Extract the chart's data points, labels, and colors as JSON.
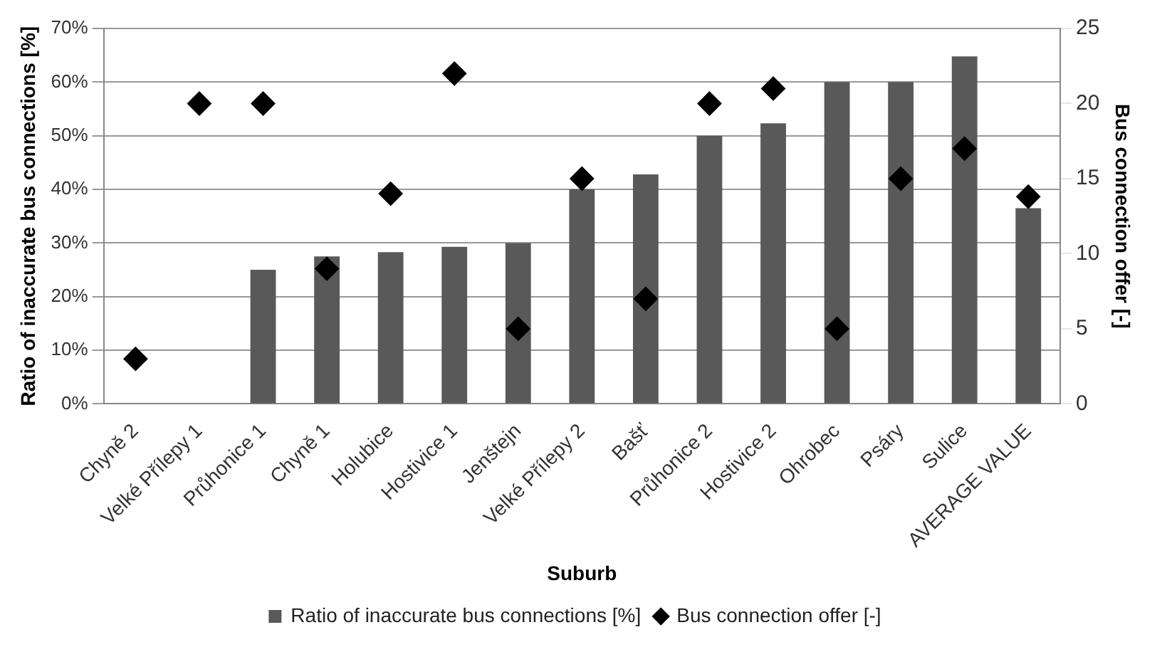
{
  "chart_data": {
    "type": "bar",
    "xlabel": "Suburb",
    "ylabel": "Ratio of inaccurate bus connections [%]",
    "y2label": "Bus connection offer [-]",
    "categories": [
      "Chyně 2",
      "Velké Přílepy 1",
      "Průhonice 1",
      "Chyně 1",
      "Holubice",
      "Hostivice 1",
      "Jenštejn",
      "Velké Přílepy 2",
      "Bašť",
      "Průhonice 2",
      "Hostivice 2",
      "Ohrobec",
      "Psáry",
      "Sulice",
      "AVERAGE VALUE"
    ],
    "series": [
      {
        "name": "Ratio of inaccurate bus connections [%]",
        "color": "#595959",
        "values": [
          0,
          0,
          25,
          27.5,
          28.3,
          29.3,
          30,
          40,
          42.8,
          50,
          52.3,
          60,
          60,
          64.8,
          36.5
        ]
      },
      {
        "name": "Bus connection offer [-]",
        "type": "scatter",
        "axis": "y2",
        "marker": "diamond",
        "color": "#000000",
        "values": [
          3,
          20,
          20,
          9,
          14,
          22,
          5,
          15,
          7,
          20,
          21,
          5,
          15,
          17,
          13.8
        ]
      }
    ],
    "ylim": [
      0,
      70
    ],
    "yticks": [
      {
        "value": 0,
        "label": "0%"
      },
      {
        "value": 10,
        "label": "10%"
      },
      {
        "value": 20,
        "label": "20%"
      },
      {
        "value": 30,
        "label": "30%"
      },
      {
        "value": 40,
        "label": "40%"
      },
      {
        "value": 50,
        "label": "50%"
      },
      {
        "value": 60,
        "label": "60%"
      },
      {
        "value": 70,
        "label": "70%"
      }
    ],
    "y2lim": [
      0,
      25
    ],
    "y2ticks": [
      0,
      5,
      10,
      15,
      20,
      25
    ],
    "grid": "y",
    "legend": "bottom"
  }
}
